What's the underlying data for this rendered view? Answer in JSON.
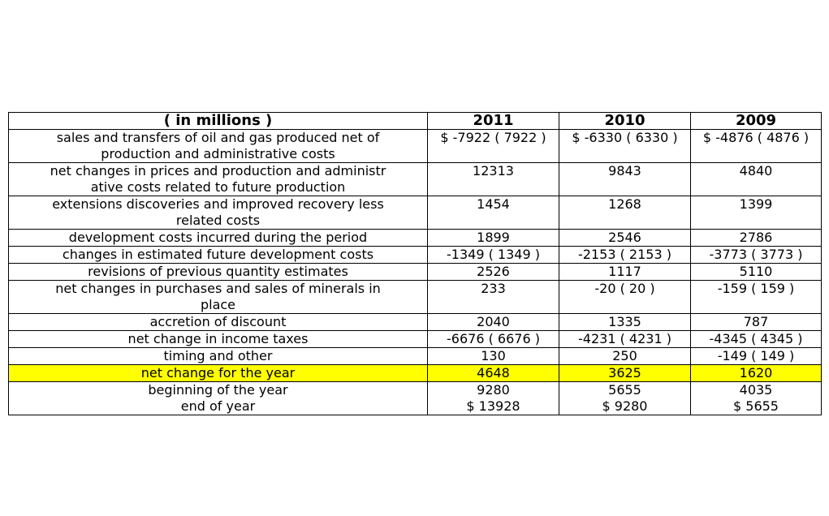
{
  "table": {
    "headers": [
      "( in millions )",
      "2011",
      "2010",
      "2009"
    ],
    "highlight_color": "#ffff00",
    "rows": [
      {
        "label": "sales and transfers of oil and gas produced net of\nproduction and administrative costs",
        "v2011": "$ -7922 ( 7922 )",
        "v2010": "$ -6330 ( 6330 )",
        "v2009": "$ -4876 ( 4876 )"
      },
      {
        "label": "net changes in prices and production and administr\native costs related to future production",
        "v2011": "12313",
        "v2010": "9843",
        "v2009": "4840"
      },
      {
        "label": "extensions discoveries and improved recovery less\nrelated costs",
        "v2011": "1454",
        "v2010": "1268",
        "v2009": "1399"
      },
      {
        "label": "development costs incurred during the period",
        "v2011": "1899",
        "v2010": "2546",
        "v2009": "2786"
      },
      {
        "label": "changes in estimated future development costs",
        "v2011": "-1349 ( 1349 )",
        "v2010": "-2153 ( 2153 )",
        "v2009": "-3773 ( 3773 )"
      },
      {
        "label": "revisions of previous quantity estimates",
        "v2011": "2526",
        "v2010": "1117",
        "v2009": "5110"
      },
      {
        "label": "net changes in purchases and sales of minerals in\nplace",
        "v2011": "233",
        "v2010": "-20 ( 20 )",
        "v2009": "-159 ( 159 )"
      },
      {
        "label": "accretion of discount",
        "v2011": "2040",
        "v2010": "1335",
        "v2009": "787"
      },
      {
        "label": "net change in income taxes",
        "v2011": "-6676 ( 6676 )",
        "v2010": "-4231 ( 4231 )",
        "v2009": "-4345 ( 4345 )"
      },
      {
        "label": "timing and other",
        "v2011": "130",
        "v2010": "250",
        "v2009": "-149 ( 149 )"
      },
      {
        "label": "net change for the year",
        "v2011": "4648",
        "v2010": "3625",
        "v2009": "1620"
      },
      {
        "label": "beginning of the year\nend of year",
        "v2011": "9280\n$ 13928",
        "v2010": "5655\n$ 9280",
        "v2009": "4035\n$ 5655"
      }
    ]
  }
}
